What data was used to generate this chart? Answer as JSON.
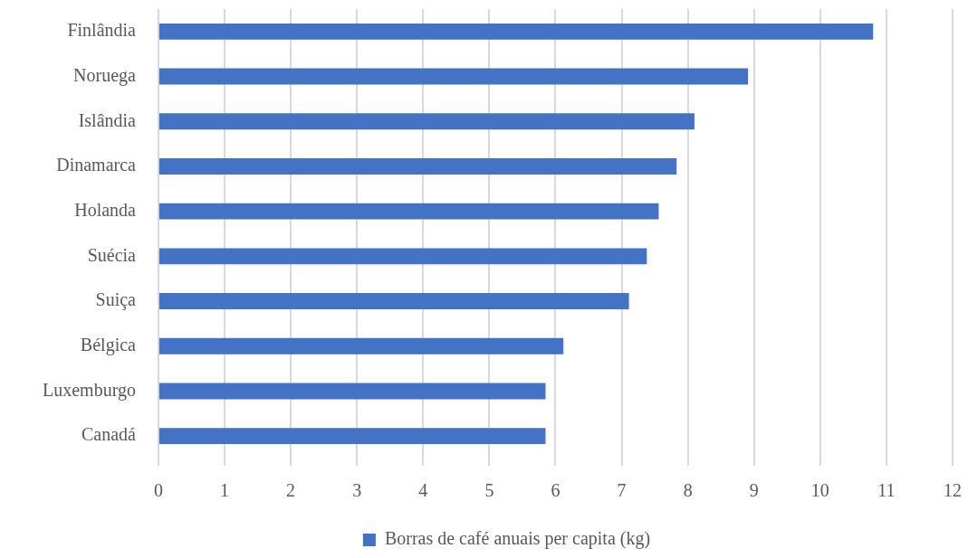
{
  "chart_data": {
    "type": "bar",
    "orientation": "horizontal",
    "categories": [
      "Finlândia",
      "Noruega",
      "Islândia",
      "Dinamarca",
      "Holanda",
      "Suécia",
      "Suiça",
      "Bélgica",
      "Luxemburgo",
      "Canadá"
    ],
    "series": [
      {
        "name": "Borras de café anuais per capita (kg)",
        "color": "#4472c4",
        "values": [
          10.8,
          8.91,
          8.1,
          7.83,
          7.56,
          7.38,
          7.11,
          6.12,
          5.85,
          5.85
        ]
      }
    ],
    "xlim": [
      0,
      12
    ],
    "xticks": [
      0,
      1,
      2,
      3,
      4,
      5,
      6,
      7,
      8,
      9,
      10,
      11,
      12
    ],
    "grid": "x",
    "legend": "bottom"
  }
}
